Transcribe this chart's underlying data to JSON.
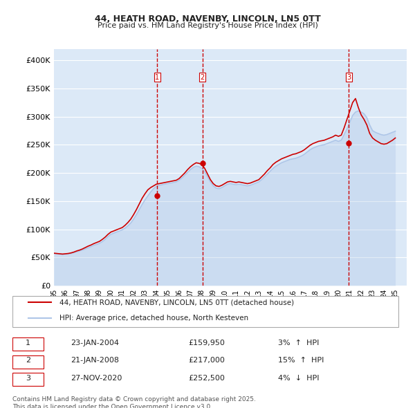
{
  "title": "44, HEATH ROAD, NAVENBY, LINCOLN, LN5 0TT",
  "subtitle": "Price paid vs. HM Land Registry's House Price Index (HPI)",
  "ylabel_ticks": [
    "£0",
    "£50K",
    "£100K",
    "£150K",
    "£200K",
    "£250K",
    "£300K",
    "£350K",
    "£400K"
  ],
  "ytick_values": [
    0,
    50000,
    100000,
    150000,
    200000,
    250000,
    300000,
    350000,
    400000
  ],
  "ylim": [
    0,
    420000
  ],
  "xlim_start": 1995.0,
  "xlim_end": 2026.0,
  "hpi_color": "#aec6e8",
  "price_color": "#cc0000",
  "background_color": "#dce9f7",
  "plot_bg_color": "#dce9f7",
  "legend_label_price": "44, HEATH ROAD, NAVENBY, LINCOLN, LN5 0TT (detached house)",
  "legend_label_hpi": "HPI: Average price, detached house, North Kesteven",
  "transactions": [
    {
      "id": 1,
      "date": "23-JAN-2004",
      "price": 159950,
      "pct": "3%",
      "dir": "↑",
      "year": 2004.06
    },
    {
      "id": 2,
      "date": "21-JAN-2008",
      "price": 217000,
      "pct": "15%",
      "dir": "↑",
      "year": 2008.06
    },
    {
      "id": 3,
      "date": "27-NOV-2020",
      "price": 252500,
      "pct": "4%",
      "dir": "↓",
      "year": 2020.92
    }
  ],
  "footer": "Contains HM Land Registry data © Crown copyright and database right 2025.\nThis data is licensed under the Open Government Licence v3.0.",
  "hpi_data_x": [
    1995.0,
    1995.25,
    1995.5,
    1995.75,
    1996.0,
    1996.25,
    1996.5,
    1996.75,
    1997.0,
    1997.25,
    1997.5,
    1997.75,
    1998.0,
    1998.25,
    1998.5,
    1998.75,
    1999.0,
    1999.25,
    1999.5,
    1999.75,
    2000.0,
    2000.25,
    2000.5,
    2000.75,
    2001.0,
    2001.25,
    2001.5,
    2001.75,
    2002.0,
    2002.25,
    2002.5,
    2002.75,
    2003.0,
    2003.25,
    2003.5,
    2003.75,
    2004.0,
    2004.25,
    2004.5,
    2004.75,
    2005.0,
    2005.25,
    2005.5,
    2005.75,
    2006.0,
    2006.25,
    2006.5,
    2006.75,
    2007.0,
    2007.25,
    2007.5,
    2007.75,
    2008.0,
    2008.25,
    2008.5,
    2008.75,
    2009.0,
    2009.25,
    2009.5,
    2009.75,
    2010.0,
    2010.25,
    2010.5,
    2010.75,
    2011.0,
    2011.25,
    2011.5,
    2011.75,
    2012.0,
    2012.25,
    2012.5,
    2012.75,
    2013.0,
    2013.25,
    2013.5,
    2013.75,
    2014.0,
    2014.25,
    2014.5,
    2014.75,
    2015.0,
    2015.25,
    2015.5,
    2015.75,
    2016.0,
    2016.25,
    2016.5,
    2016.75,
    2017.0,
    2017.25,
    2017.5,
    2017.75,
    2018.0,
    2018.25,
    2018.5,
    2018.75,
    2019.0,
    2019.25,
    2019.5,
    2019.75,
    2020.0,
    2020.25,
    2020.5,
    2020.75,
    2021.0,
    2021.25,
    2021.5,
    2021.75,
    2022.0,
    2022.25,
    2022.5,
    2022.75,
    2023.0,
    2023.25,
    2023.5,
    2023.75,
    2024.0,
    2024.25,
    2024.5,
    2024.75,
    2025.0
  ],
  "hpi_data_y": [
    57000,
    56500,
    55800,
    55200,
    55500,
    56000,
    57000,
    58500,
    60000,
    61500,
    63000,
    65000,
    67000,
    69000,
    71500,
    73000,
    75000,
    78000,
    82000,
    87000,
    91000,
    93000,
    95000,
    97000,
    99000,
    102000,
    106000,
    111000,
    118000,
    126000,
    135000,
    144000,
    152000,
    159000,
    166000,
    172000,
    176000,
    178000,
    179000,
    180000,
    181000,
    182000,
    183000,
    184000,
    187000,
    191000,
    196000,
    201000,
    206000,
    210000,
    212000,
    211000,
    208000,
    202000,
    193000,
    184000,
    177000,
    173000,
    172000,
    174000,
    177000,
    180000,
    181000,
    180000,
    179000,
    180000,
    179000,
    178000,
    177000,
    178000,
    180000,
    182000,
    184000,
    188000,
    193000,
    198000,
    203000,
    208000,
    212000,
    215000,
    218000,
    220000,
    222000,
    224000,
    225000,
    226000,
    228000,
    230000,
    233000,
    237000,
    241000,
    244000,
    246000,
    248000,
    249000,
    250000,
    252000,
    254000,
    256000,
    258000,
    256000,
    258000,
    268000,
    278000,
    290000,
    302000,
    308000,
    310000,
    308000,
    305000,
    298000,
    285000,
    275000,
    272000,
    270000,
    268000,
    267000,
    268000,
    270000,
    272000,
    274000
  ],
  "price_data_x": [
    1995.0,
    1995.25,
    1995.5,
    1995.75,
    1996.0,
    1996.25,
    1996.5,
    1996.75,
    1997.0,
    1997.25,
    1997.5,
    1997.75,
    1998.0,
    1998.25,
    1998.5,
    1998.75,
    1999.0,
    1999.25,
    1999.5,
    1999.75,
    2000.0,
    2000.25,
    2000.5,
    2000.75,
    2001.0,
    2001.25,
    2001.5,
    2001.75,
    2002.0,
    2002.25,
    2002.5,
    2002.75,
    2003.0,
    2003.25,
    2003.5,
    2003.75,
    2004.0,
    2004.25,
    2004.5,
    2004.75,
    2005.0,
    2005.25,
    2005.5,
    2005.75,
    2006.0,
    2006.25,
    2006.5,
    2006.75,
    2007.0,
    2007.25,
    2007.5,
    2007.75,
    2008.0,
    2008.25,
    2008.5,
    2008.75,
    2009.0,
    2009.25,
    2009.5,
    2009.75,
    2010.0,
    2010.25,
    2010.5,
    2010.75,
    2011.0,
    2011.25,
    2011.5,
    2011.75,
    2012.0,
    2012.25,
    2012.5,
    2012.75,
    2013.0,
    2013.25,
    2013.5,
    2013.75,
    2014.0,
    2014.25,
    2014.5,
    2014.75,
    2015.0,
    2015.25,
    2015.5,
    2015.75,
    2016.0,
    2016.25,
    2016.5,
    2016.75,
    2017.0,
    2017.25,
    2017.5,
    2017.75,
    2018.0,
    2018.25,
    2018.5,
    2018.75,
    2019.0,
    2019.25,
    2019.5,
    2019.75,
    2020.0,
    2020.25,
    2020.5,
    2020.75,
    2021.0,
    2021.25,
    2021.5,
    2021.75,
    2022.0,
    2022.25,
    2022.5,
    2022.75,
    2023.0,
    2023.25,
    2023.5,
    2023.75,
    2024.0,
    2024.25,
    2024.5,
    2024.75,
    2025.0
  ],
  "price_data_y": [
    57500,
    57000,
    56500,
    56000,
    56500,
    57000,
    58000,
    59500,
    61500,
    63000,
    65000,
    67500,
    70000,
    72000,
    74500,
    76500,
    78500,
    82000,
    86000,
    91000,
    95000,
    97000,
    99000,
    101000,
    103000,
    107000,
    112000,
    118000,
    126000,
    135000,
    145000,
    155000,
    163000,
    170000,
    174000,
    177000,
    180000,
    181000,
    182000,
    183000,
    184000,
    185000,
    186000,
    187000,
    190000,
    195000,
    200000,
    206000,
    211000,
    215000,
    218000,
    217000,
    215000,
    208000,
    198000,
    188000,
    181000,
    177000,
    176000,
    178000,
    181000,
    184000,
    185000,
    184000,
    183000,
    184000,
    183000,
    182000,
    181000,
    182000,
    184000,
    186000,
    188000,
    193000,
    198000,
    204000,
    209000,
    215000,
    219000,
    222000,
    225000,
    227000,
    229000,
    231000,
    233000,
    234000,
    236000,
    238000,
    241000,
    245000,
    249000,
    252000,
    254000,
    256000,
    257000,
    258000,
    260000,
    262000,
    264000,
    267000,
    265000,
    267000,
    280000,
    295000,
    310000,
    325000,
    332000,
    316000,
    303000,
    295000,
    285000,
    270000,
    262000,
    258000,
    255000,
    252000,
    251000,
    252000,
    255000,
    258000,
    262000
  ]
}
